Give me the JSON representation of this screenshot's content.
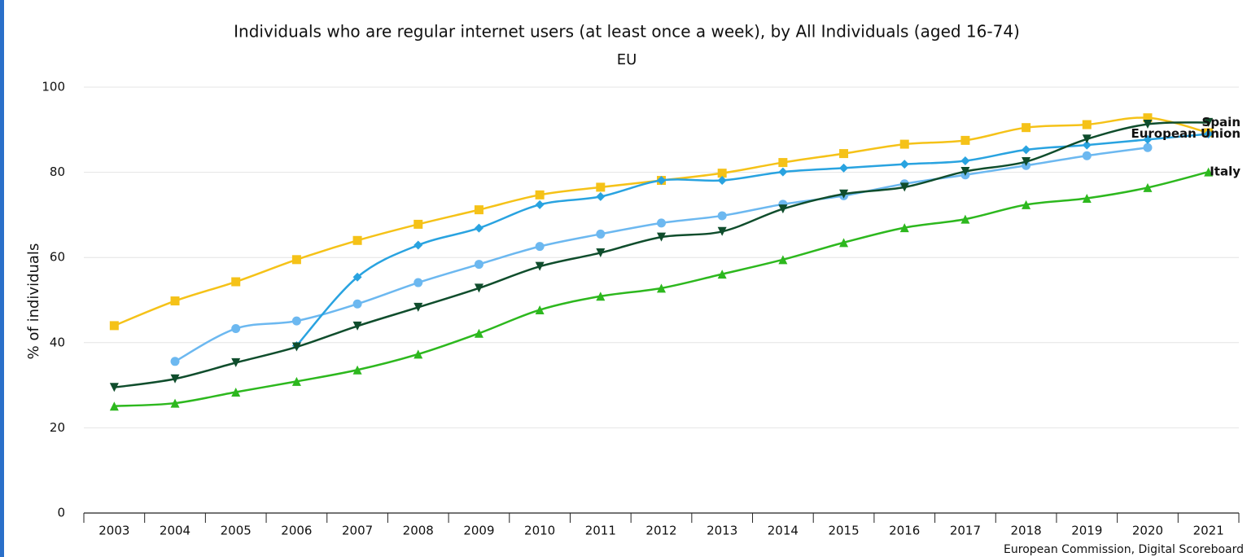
{
  "chart_data": {
    "type": "line",
    "title": "Individuals who are regular internet users (at least once a week), by All Individuals (aged 16-74)",
    "subtitle": "EU",
    "y_label": "% of individuals",
    "source": "European Commission, Digital Scoreboard",
    "categories": [
      "2003",
      "2004",
      "2005",
      "2006",
      "2007",
      "2008",
      "2009",
      "2010",
      "2011",
      "2012",
      "2013",
      "2014",
      "2015",
      "2016",
      "2017",
      "2018",
      "2019",
      "2020",
      "2021"
    ],
    "ylim": [
      0,
      100
    ],
    "yticks": [
      0,
      20,
      40,
      60,
      80,
      100
    ],
    "grid": true,
    "series": [
      {
        "color": "#f5c218",
        "marker": "square",
        "values": [
          44,
          49.8,
          54.3,
          59.5,
          64,
          67.8,
          71.2,
          74.7,
          76.5,
          78.1,
          79.8,
          82.3,
          84.4,
          86.6,
          87.5,
          90.5,
          91.2,
          92.8,
          89.3
        ]
      },
      {
        "color": "#6cb8f0",
        "marker": "circle",
        "values": [
          null,
          35.6,
          43.3,
          45.1,
          49.1,
          54.1,
          58.4,
          62.6,
          65.5,
          68.1,
          69.8,
          72.5,
          74.5,
          77.3,
          79.4,
          81.6,
          83.9,
          85.8,
          null
        ]
      },
      {
        "name": "European Union",
        "color": "#29a3e0",
        "marker": "diamond",
        "values": [
          null,
          null,
          null,
          39.3,
          55.4,
          62.9,
          66.9,
          72.4,
          74.3,
          78.1,
          78.1,
          80.1,
          81.0,
          81.9,
          82.7,
          85.3,
          86.4,
          87.7,
          89
        ]
      },
      {
        "name": "Spain",
        "color": "#0f4d2c",
        "marker": "triangle-down",
        "values": [
          29.5,
          31.5,
          35.3,
          39,
          43.9,
          48.3,
          52.8,
          57.9,
          61.1,
          64.8,
          66.1,
          71.4,
          74.9,
          76.5,
          80.2,
          82.5,
          87.8,
          91.3,
          91.7
        ]
      },
      {
        "name": "Italy",
        "color": "#2db81e",
        "marker": "triangle-up",
        "values": [
          25.1,
          25.8,
          28.4,
          30.9,
          33.6,
          37.3,
          42.2,
          47.7,
          50.9,
          52.8,
          56.1,
          59.5,
          63.5,
          67,
          69,
          72.4,
          73.9,
          76.4,
          80.1
        ]
      }
    ]
  }
}
